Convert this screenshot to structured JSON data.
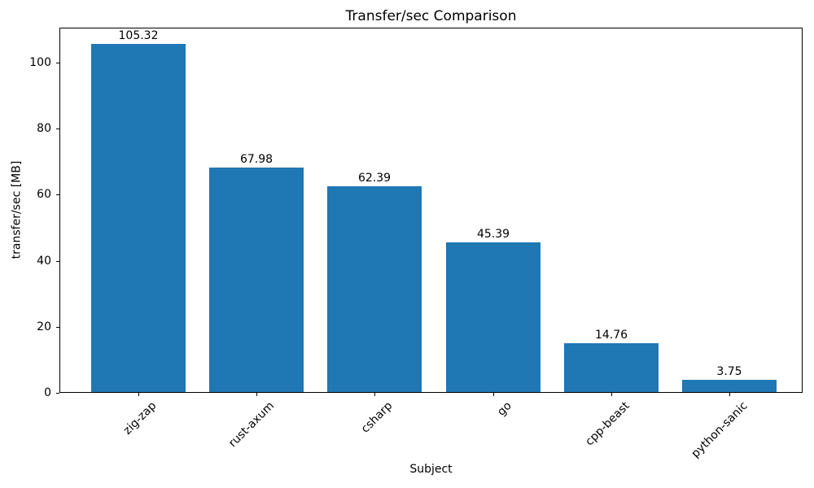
{
  "chart_data": {
    "type": "bar",
    "title": "Transfer/sec Comparison",
    "xlabel": "Subject",
    "ylabel": "transfer/sec [MB]",
    "categories": [
      "zig-zap",
      "rust-axum",
      "csharp",
      "go",
      "cpp-beast",
      "python-sanic"
    ],
    "values": [
      105.32,
      67.98,
      62.39,
      45.39,
      14.76,
      3.75
    ],
    "bar_labels": [
      "105.32",
      "67.98",
      "62.39",
      "45.39",
      "14.76",
      "3.75"
    ],
    "yticks": [
      0,
      20,
      40,
      60,
      80,
      100
    ],
    "ylim": [
      0,
      110.59
    ],
    "bar_color": "#1f77b4",
    "spine_color": "#000000",
    "grid": false,
    "legend_position": "none",
    "xtick_rotation": 45
  }
}
